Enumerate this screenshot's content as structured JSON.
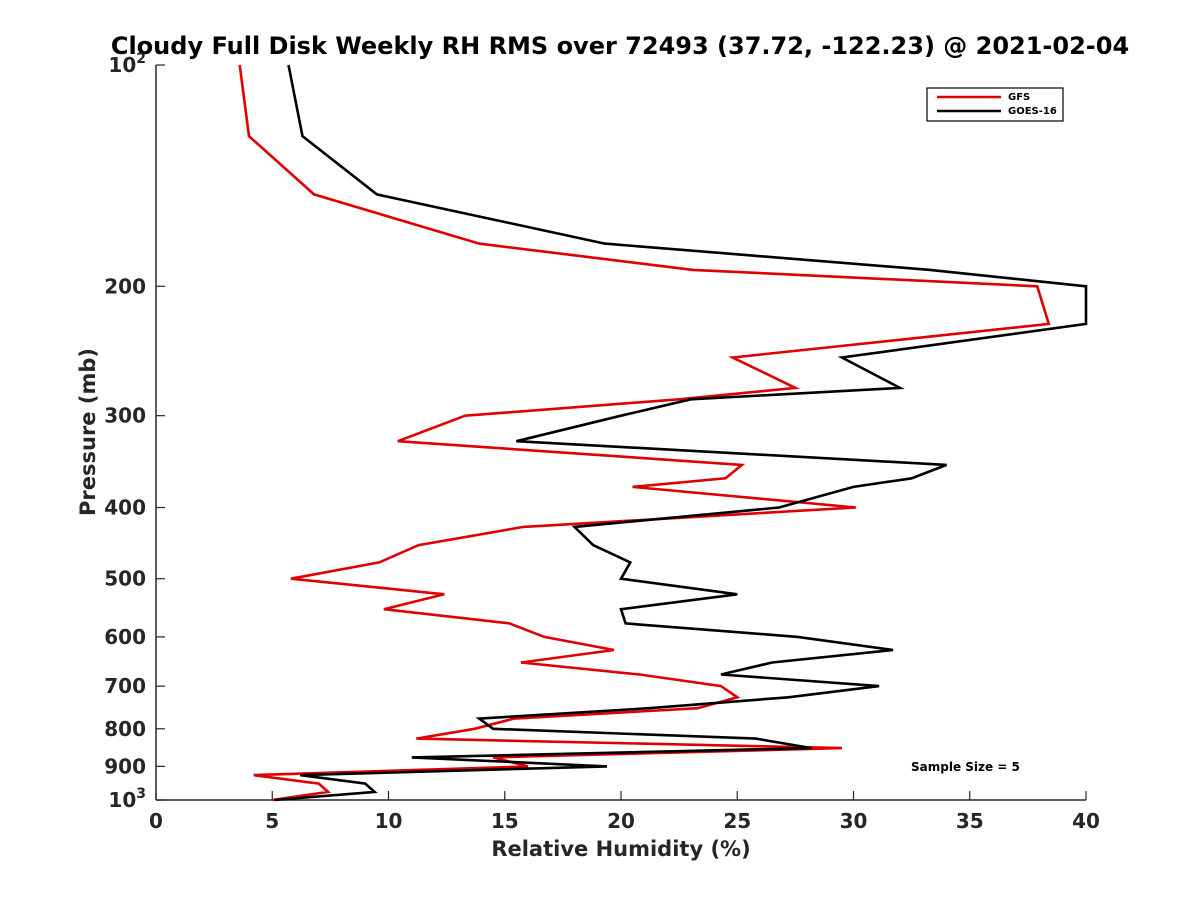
{
  "chart_data": {
    "type": "line",
    "title": "Cloudy Full Disk Weekly RH RMS over 72493 (37.72, -122.23) @ 2021-02-04",
    "xlabel": "Relative Humidity (%)",
    "ylabel": "Pressure (mb)",
    "xlim": [
      0,
      40
    ],
    "ylim": [
      100,
      1000
    ],
    "y_scale": "log",
    "y_reversed": true,
    "grid": false,
    "x_ticks": [
      0,
      5,
      10,
      15,
      20,
      25,
      30,
      35,
      40
    ],
    "x_tick_labels": [
      "0",
      "5",
      "10",
      "15",
      "20",
      "25",
      "30",
      "35",
      "40"
    ],
    "y_ticks": [
      {
        "value": 100,
        "base": "10",
        "exp": "2"
      },
      {
        "value": 200,
        "label": "200"
      },
      {
        "value": 300,
        "label": "300"
      },
      {
        "value": 400,
        "label": "400"
      },
      {
        "value": 500,
        "label": "500"
      },
      {
        "value": 600,
        "label": "600"
      },
      {
        "value": 700,
        "label": "700"
      },
      {
        "value": 800,
        "label": "800"
      },
      {
        "value": 900,
        "label": "900"
      },
      {
        "value": 1000,
        "base": "10",
        "exp": "3"
      }
    ],
    "legend_position": "top-right",
    "annotation": "Sample Size = 5",
    "series": [
      {
        "name": "GFS",
        "color": "#e00000",
        "points": [
          [
            3.6,
            100
          ],
          [
            4.0,
            125
          ],
          [
            6.8,
            150
          ],
          [
            13.9,
            175
          ],
          [
            23.1,
            190
          ],
          [
            37.9,
            200
          ],
          [
            38.4,
            225
          ],
          [
            24.8,
            250
          ],
          [
            27.5,
            275
          ],
          [
            22.5,
            285
          ],
          [
            13.3,
            300
          ],
          [
            10.4,
            325
          ],
          [
            25.2,
            350
          ],
          [
            24.5,
            365
          ],
          [
            20.5,
            375
          ],
          [
            30.1,
            400
          ],
          [
            15.8,
            425
          ],
          [
            11.3,
            450
          ],
          [
            9.6,
            475
          ],
          [
            5.8,
            500
          ],
          [
            12.4,
            525
          ],
          [
            9.8,
            550
          ],
          [
            15.2,
            575
          ],
          [
            16.7,
            600
          ],
          [
            19.7,
            625
          ],
          [
            15.7,
            650
          ],
          [
            20.8,
            675
          ],
          [
            24.3,
            700
          ],
          [
            25.0,
            725
          ],
          [
            23.3,
            750
          ],
          [
            15.4,
            775
          ],
          [
            13.7,
            800
          ],
          [
            11.2,
            825
          ],
          [
            29.5,
            850
          ],
          [
            14.5,
            875
          ],
          [
            16.0,
            900
          ],
          [
            4.2,
            925
          ],
          [
            7.0,
            950
          ],
          [
            7.4,
            975
          ],
          [
            5.0,
            1000
          ]
        ]
      },
      {
        "name": "GOES-16",
        "color": "#000000",
        "points": [
          [
            5.7,
            100
          ],
          [
            6.3,
            125
          ],
          [
            9.5,
            150
          ],
          [
            19.3,
            175
          ],
          [
            33.3,
            190
          ],
          [
            40.0,
            200
          ],
          [
            40.0,
            225
          ],
          [
            29.5,
            250
          ],
          [
            32.0,
            275
          ],
          [
            23.0,
            285
          ],
          [
            20.0,
            300
          ],
          [
            15.5,
            325
          ],
          [
            34.0,
            350
          ],
          [
            32.5,
            365
          ],
          [
            30.0,
            375
          ],
          [
            26.8,
            400
          ],
          [
            18.0,
            425
          ],
          [
            18.8,
            450
          ],
          [
            20.4,
            475
          ],
          [
            20.0,
            500
          ],
          [
            25.0,
            525
          ],
          [
            20.0,
            550
          ],
          [
            20.2,
            575
          ],
          [
            27.6,
            600
          ],
          [
            31.7,
            625
          ],
          [
            26.5,
            650
          ],
          [
            24.3,
            675
          ],
          [
            31.1,
            700
          ],
          [
            27.2,
            725
          ],
          [
            21.2,
            750
          ],
          [
            13.9,
            775
          ],
          [
            14.5,
            800
          ],
          [
            25.8,
            825
          ],
          [
            28.2,
            850
          ],
          [
            11.0,
            875
          ],
          [
            19.4,
            900
          ],
          [
            6.2,
            925
          ],
          [
            9.0,
            950
          ],
          [
            9.4,
            975
          ],
          [
            5.1,
            1000
          ]
        ]
      }
    ]
  }
}
